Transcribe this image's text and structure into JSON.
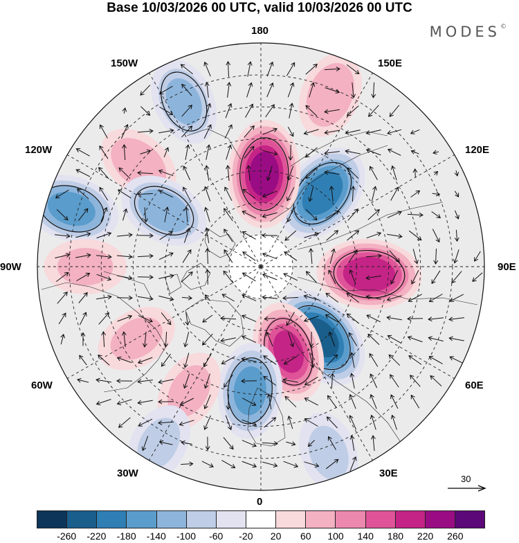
{
  "title": "Base 10/03/2026 00 UTC, valid 10/03/2026 00 UTC",
  "brand": {
    "name": "MODES",
    "mark": "©"
  },
  "longitude_labels": {
    "l180": "180",
    "l150E": "150E",
    "l120E": "120E",
    "l90E": "90E",
    "l60E": "60E",
    "l30E": "30E",
    "l0": "0",
    "l30W": "30W",
    "l60W": "60W",
    "l90W": "90W",
    "l120W": "120W",
    "l150W": "150W"
  },
  "vector_scale": {
    "label": "30"
  },
  "colorbar": {
    "colors": [
      "#0d3559",
      "#1a5e8c",
      "#2f7fb4",
      "#5a9ccb",
      "#8db5dc",
      "#bfcde6",
      "#e2e2f0",
      "#ffffff",
      "#f8d9dc",
      "#f3b1c2",
      "#ec87ad",
      "#df5498",
      "#c42486",
      "#9a0c84",
      "#5c0878"
    ],
    "labels": [
      "-260",
      "-220",
      "-180",
      "-140",
      "-100",
      "-60",
      "-20",
      "20",
      "60",
      "100",
      "140",
      "180",
      "220",
      "260"
    ]
  },
  "anomaly_centers": [
    {
      "sign": "negative",
      "value": -230,
      "lon_deg": 40,
      "colat_deg": 29
    },
    {
      "sign": "positive",
      "value": 210,
      "lon_deg": 86,
      "colat_deg": 34
    },
    {
      "sign": "negative",
      "value": -200,
      "lon_deg": 140,
      "colat_deg": 30
    },
    {
      "sign": "positive",
      "value": 230,
      "lon_deg": 178,
      "colat_deg": 29
    },
    {
      "sign": "negative",
      "value": -100,
      "lon_deg": 205,
      "colat_deg": 57
    },
    {
      "sign": "positive",
      "value": 90,
      "lon_deg": 158,
      "colat_deg": 58
    },
    {
      "sign": "positive",
      "value": 80,
      "lon_deg": 230,
      "colat_deg": 50
    },
    {
      "sign": "negative",
      "value": -120,
      "lon_deg": 240,
      "colat_deg": 35
    },
    {
      "sign": "negative",
      "value": -150,
      "lon_deg": 253,
      "colat_deg": 62
    },
    {
      "sign": "positive",
      "value": 180,
      "lon_deg": 18,
      "colat_deg": 28
    },
    {
      "sign": "negative",
      "value": -150,
      "lon_deg": 355,
      "colat_deg": 39
    },
    {
      "sign": "positive",
      "value": 60,
      "lon_deg": 330,
      "colat_deg": 45
    },
    {
      "sign": "negative",
      "value": -60,
      "lon_deg": 330,
      "colat_deg": 64
    },
    {
      "sign": "negative",
      "value": -60,
      "lon_deg": 20,
      "colat_deg": 62
    },
    {
      "sign": "positive",
      "value": 60,
      "lon_deg": 300,
      "colat_deg": 45
    },
    {
      "sign": "positive",
      "value": 60,
      "lon_deg": 270,
      "colat_deg": 55
    }
  ]
}
